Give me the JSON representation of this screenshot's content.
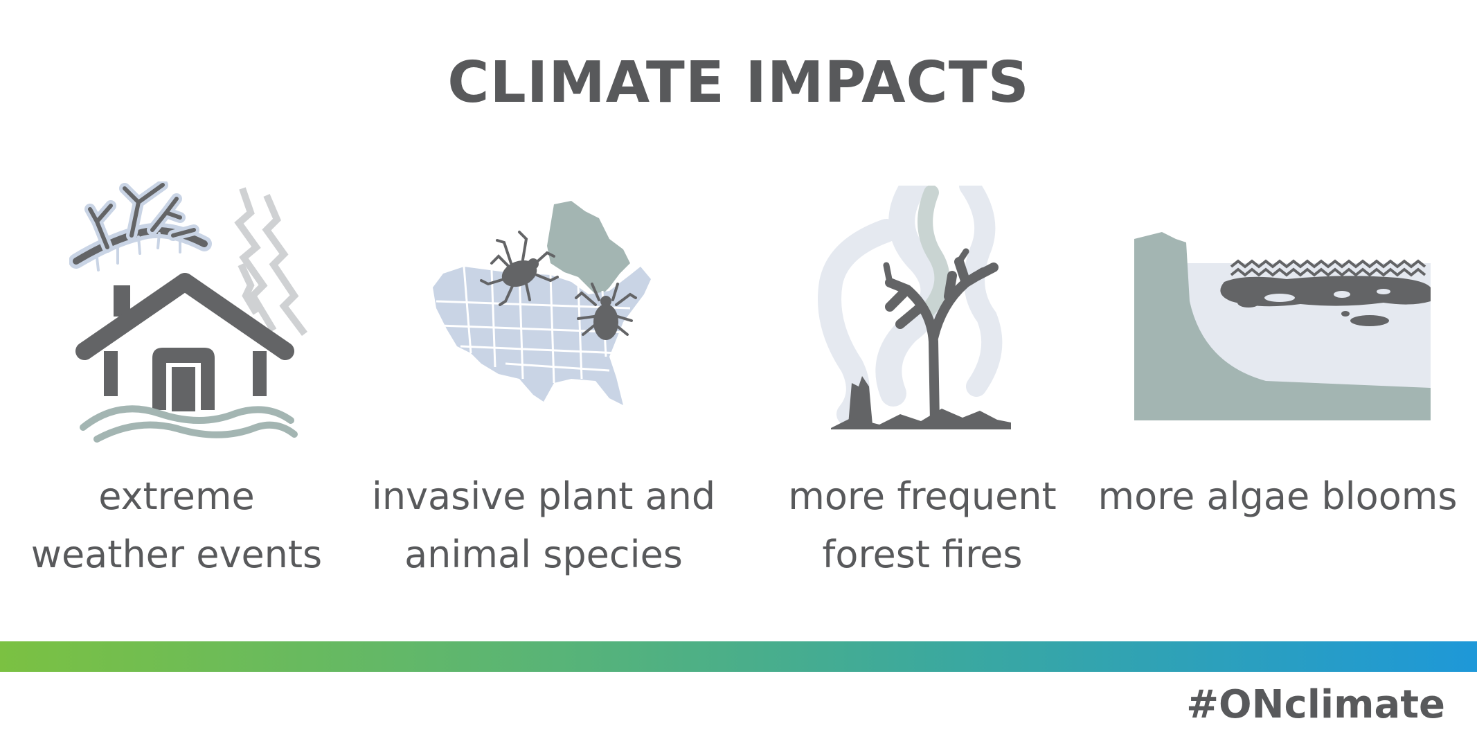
{
  "title": "CLIMATE IMPACTS",
  "impacts": [
    {
      "icon": "flooded-house-icon",
      "line1": "extreme",
      "line2": "weather events"
    },
    {
      "icon": "tick-map-icon",
      "line1": "invasive plant and",
      "line2": "animal species"
    },
    {
      "icon": "burnt-tree-icon",
      "line1": "more frequent",
      "line2": "forest fires"
    },
    {
      "icon": "algae-lake-icon",
      "line1": "more algae blooms",
      "line2": ""
    }
  ],
  "hashtag": "#ONclimate",
  "colors": {
    "text": "#58595b",
    "icon_dark": "#636466",
    "icon_teal": "#a3b5b2",
    "icon_blue": "#c9d4e5",
    "smoke": "#e5e9f0",
    "gradient_start": "#7bc142",
    "gradient_end": "#1e98d8"
  }
}
